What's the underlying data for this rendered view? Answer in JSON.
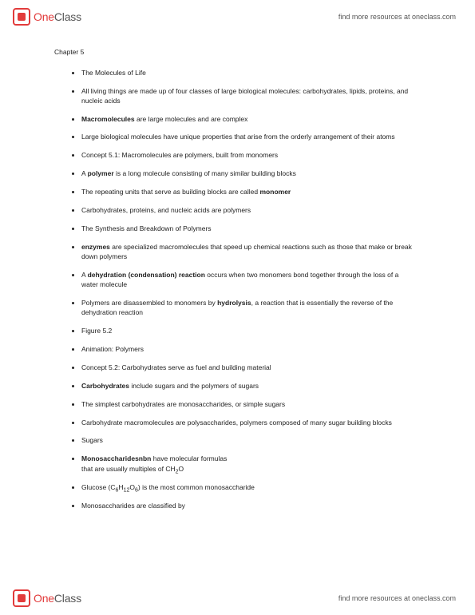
{
  "brand": {
    "one": "One",
    "class": "Class"
  },
  "header_link": "find more resources at oneclass.com",
  "footer_link": "find more resources at oneclass.com",
  "chapter_title": "Chapter 5",
  "bullets": [
    {
      "html": "The Molecules of Life"
    },
    {
      "html": "All living things are made up of four classes of large biological molecules: carbohydrates, lipids, proteins, and nucleic acids"
    },
    {
      "html": "<b>Macromolecules</b> are large molecules and are complex"
    },
    {
      "html": "Large biological molecules have unique properties that arise from the orderly arrangement of their atoms"
    },
    {
      "html": "Concept 5.1: Macromolecules are polymers, built from monomers"
    },
    {
      "html": "A <b>polymer</b> is a long molecule consisting of many similar building blocks"
    },
    {
      "html": "The repeating units that serve as building blocks are called <b>monomer</b>"
    },
    {
      "html": "Carbohydrates, proteins, and nucleic acids are polymers"
    },
    {
      "html": "The Synthesis and Breakdown of Polymers"
    },
    {
      "html": "<b>enzymes</b> are specialized macromolecules that speed up chemical reactions such as those that make or break down polymers"
    },
    {
      "html": "A <b>dehydration (condensation) reaction</b> occurs when two monomers bond together through the loss of a<span class='cont'>water molecule</span>"
    },
    {
      "html": "Polymers are disassembled to monomers by <b>hydrolysis</b>, a reaction that is essentially the reverse of the dehydration reaction"
    },
    {
      "html": "Figure 5.2"
    },
    {
      "html": "Animation: Polymers"
    },
    {
      "html": "Concept 5.2: Carbohydrates serve as fuel and building material"
    },
    {
      "html": "<b>Carbohydrates</b> include sugars and the polymers of sugars"
    },
    {
      "html": "The simplest carbohydrates are monosaccharides, or simple sugars"
    },
    {
      "html": "Carbohydrate macromolecules are polysaccharides, polymers composed of many sugar building blocks"
    },
    {
      "html": "Sugars"
    },
    {
      "html": "<b>Monosaccharidesnbn</b> have molecular formulas<span class='cont'>that are usually multiples of CH<span class='sub'>2</span>O</span>"
    },
    {
      "html": "Glucose (C<span class='sub'>6</span>H<span class='sub'>12</span>O<span class='sub'>6</span>) is the most common monosaccharide"
    },
    {
      "html": "Monosaccharides are classified by"
    }
  ]
}
